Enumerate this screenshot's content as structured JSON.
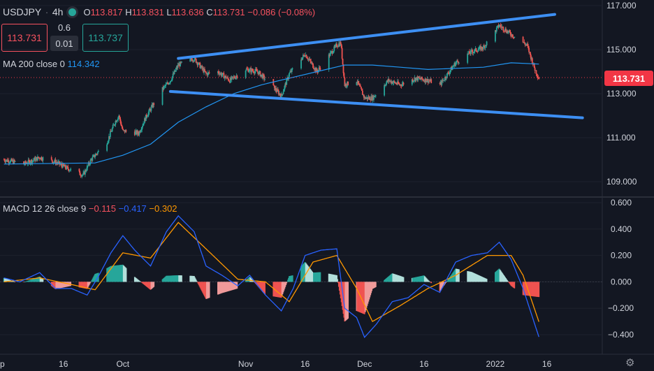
{
  "header": {
    "symbol": "USDJPY",
    "interval": "4h",
    "open_label": "O",
    "open": "113.817",
    "high_label": "H",
    "high": "113.831",
    "low_label": "L",
    "low": "113.636",
    "close_label": "C",
    "close": "113.731",
    "change": "−0.086 (−0.08%)"
  },
  "trade": {
    "sell_price": "113.731",
    "spread_top": "0.6",
    "spread_bottom": "0.01",
    "buy_price": "113.737"
  },
  "ma": {
    "label": "MA 200 close 0",
    "value": "114.342"
  },
  "macd": {
    "label": "MACD 12 26 close 9",
    "hist": "−0.115",
    "macd": "−0.417",
    "signal": "−0.302"
  },
  "price_tag": "113.731",
  "colors": {
    "background": "#131722",
    "up": "#26a69a",
    "down": "#ef5350",
    "ma": "#2196f3",
    "trendline": "#3d8ff3",
    "macd": "#2962ff",
    "signal": "#ff9800",
    "hist_up": "#b2dfdb",
    "hist_down": "#ef9a9a"
  },
  "chart_data": [
    {
      "type": "candlestick",
      "title": "USDJPY 4h",
      "x_ticks": [
        "ep",
        "16",
        "Oct",
        "Nov",
        "16",
        "Dec",
        "16",
        "2022",
        "16"
      ],
      "y_ticks": [
        "117.000",
        "115.000",
        "113.000",
        "111.000",
        "109.000"
      ],
      "ylim": [
        108.6,
        117.1
      ],
      "price_points": [
        [
          "2021-09-01",
          110.0
        ],
        [
          "2021-09-06",
          109.8
        ],
        [
          "2021-09-10",
          110.1
        ],
        [
          "2021-09-14",
          109.9
        ],
        [
          "2021-09-17",
          109.6
        ],
        [
          "2021-09-21",
          109.3
        ],
        [
          "2021-09-23",
          110.0
        ],
        [
          "2021-09-27",
          110.8
        ],
        [
          "2021-09-29",
          111.7
        ],
        [
          "2021-09-30",
          112.0
        ],
        [
          "2021-10-01",
          111.3
        ],
        [
          "2021-10-05",
          111.2
        ],
        [
          "2021-10-07",
          112.0
        ],
        [
          "2021-10-11",
          113.2
        ],
        [
          "2021-10-13",
          113.6
        ],
        [
          "2021-10-15",
          114.3
        ],
        [
          "2021-10-19",
          114.6
        ],
        [
          "2021-10-22",
          113.9
        ],
        [
          "2021-10-25",
          114.0
        ],
        [
          "2021-10-28",
          113.6
        ],
        [
          "2021-11-01",
          114.1
        ],
        [
          "2021-11-04",
          114.0
        ],
        [
          "2021-11-08",
          113.3
        ],
        [
          "2021-11-10",
          112.9
        ],
        [
          "2021-11-12",
          113.9
        ],
        [
          "2021-11-16",
          114.8
        ],
        [
          "2021-11-19",
          114.0
        ],
        [
          "2021-11-24",
          115.2
        ],
        [
          "2021-11-25",
          115.3
        ],
        [
          "2021-11-26",
          113.4
        ],
        [
          "2021-11-29",
          113.6
        ],
        [
          "2021-12-01",
          112.8
        ],
        [
          "2021-12-03",
          112.8
        ],
        [
          "2021-12-07",
          113.6
        ],
        [
          "2021-12-10",
          113.4
        ],
        [
          "2021-12-14",
          113.7
        ],
        [
          "2021-12-17",
          113.6
        ],
        [
          "2021-12-20",
          113.4
        ],
        [
          "2021-12-24",
          114.4
        ],
        [
          "2021-12-28",
          114.9
        ],
        [
          "2021-12-31",
          115.1
        ],
        [
          "2022-01-04",
          116.1
        ],
        [
          "2022-01-07",
          115.7
        ],
        [
          "2022-01-11",
          115.2
        ],
        [
          "2022-01-13",
          114.1
        ],
        [
          "2022-01-14",
          113.7
        ]
      ],
      "ma200_points": [
        [
          "2021-09-01",
          109.8
        ],
        [
          "2021-09-24",
          109.85
        ],
        [
          "2021-10-01",
          110.2
        ],
        [
          "2021-10-08",
          110.7
        ],
        [
          "2021-10-15",
          111.7
        ],
        [
          "2021-10-22",
          112.4
        ],
        [
          "2021-10-29",
          113.0
        ],
        [
          "2021-11-05",
          113.4
        ],
        [
          "2021-11-12",
          113.7
        ],
        [
          "2021-11-19",
          114.0
        ],
        [
          "2021-11-26",
          114.3
        ],
        [
          "2021-12-03",
          114.3
        ],
        [
          "2021-12-10",
          114.2
        ],
        [
          "2021-12-17",
          114.1
        ],
        [
          "2021-12-24",
          114.15
        ],
        [
          "2021-12-31",
          114.2
        ],
        [
          "2022-01-07",
          114.4
        ],
        [
          "2022-01-14",
          114.342
        ]
      ],
      "trendlines": [
        [
          [
            "2021-10-15",
            114.6
          ],
          [
            "2022-01-18",
            116.6
          ]
        ],
        [
          [
            "2021-10-13",
            113.1
          ],
          [
            "2022-01-25",
            111.9
          ]
        ]
      ]
    },
    {
      "type": "line",
      "title": "MACD 12 26 close 9",
      "y_ticks": [
        "0.600",
        "0.400",
        "0.200",
        "0.000",
        "-0.200",
        "-0.400"
      ],
      "ylim": [
        -0.5,
        0.65
      ],
      "series": [
        {
          "name": "MACD",
          "points": [
            [
              "2021-09-01",
              0.03
            ],
            [
              "2021-09-05",
              0.0
            ],
            [
              "2021-09-10",
              0.07
            ],
            [
              "2021-09-14",
              -0.05
            ],
            [
              "2021-09-18",
              -0.05
            ],
            [
              "2021-09-22",
              -0.1
            ],
            [
              "2021-09-25",
              0.05
            ],
            [
              "2021-09-28",
              0.22
            ],
            [
              "2021-10-01",
              0.35
            ],
            [
              "2021-10-04",
              0.24
            ],
            [
              "2021-10-08",
              0.12
            ],
            [
              "2021-10-12",
              0.38
            ],
            [
              "2021-10-15",
              0.5
            ],
            [
              "2021-10-19",
              0.38
            ],
            [
              "2021-10-22",
              0.12
            ],
            [
              "2021-10-26",
              0.05
            ],
            [
              "2021-10-30",
              -0.03
            ],
            [
              "2021-11-02",
              0.05
            ],
            [
              "2021-11-06",
              -0.1
            ],
            [
              "2021-11-10",
              -0.22
            ],
            [
              "2021-11-13",
              -0.05
            ],
            [
              "2021-11-16",
              0.2
            ],
            [
              "2021-11-20",
              0.24
            ],
            [
              "2021-11-24",
              0.25
            ],
            [
              "2021-11-26",
              -0.2
            ],
            [
              "2021-11-29",
              -0.27
            ],
            [
              "2021-12-01",
              -0.42
            ],
            [
              "2021-12-04",
              -0.32
            ],
            [
              "2021-12-08",
              -0.15
            ],
            [
              "2021-12-12",
              -0.12
            ],
            [
              "2021-12-16",
              -0.02
            ],
            [
              "2021-12-20",
              -0.08
            ],
            [
              "2021-12-24",
              0.15
            ],
            [
              "2021-12-28",
              0.2
            ],
            [
              "2022-01-01",
              0.22
            ],
            [
              "2022-01-04",
              0.3
            ],
            [
              "2022-01-07",
              0.17
            ],
            [
              "2022-01-10",
              -0.05
            ],
            [
              "2022-01-14",
              -0.417
            ]
          ]
        },
        {
          "name": "Signal",
          "points": [
            [
              "2021-09-01",
              0.0
            ],
            [
              "2021-09-10",
              0.03
            ],
            [
              "2021-09-18",
              -0.02
            ],
            [
              "2021-09-24",
              -0.06
            ],
            [
              "2021-10-01",
              0.22
            ],
            [
              "2021-10-08",
              0.18
            ],
            [
              "2021-10-15",
              0.45
            ],
            [
              "2021-10-22",
              0.25
            ],
            [
              "2021-10-30",
              0.02
            ],
            [
              "2021-11-06",
              0.0
            ],
            [
              "2021-11-12",
              -0.15
            ],
            [
              "2021-11-18",
              0.15
            ],
            [
              "2021-11-24",
              0.2
            ],
            [
              "2021-11-29",
              -0.05
            ],
            [
              "2021-12-03",
              -0.3
            ],
            [
              "2021-12-10",
              -0.18
            ],
            [
              "2021-12-17",
              -0.05
            ],
            [
              "2021-12-24",
              0.05
            ],
            [
              "2022-01-01",
              0.2
            ],
            [
              "2022-01-07",
              0.2
            ],
            [
              "2022-01-10",
              0.05
            ],
            [
              "2022-01-14",
              -0.302
            ]
          ]
        }
      ]
    }
  ]
}
